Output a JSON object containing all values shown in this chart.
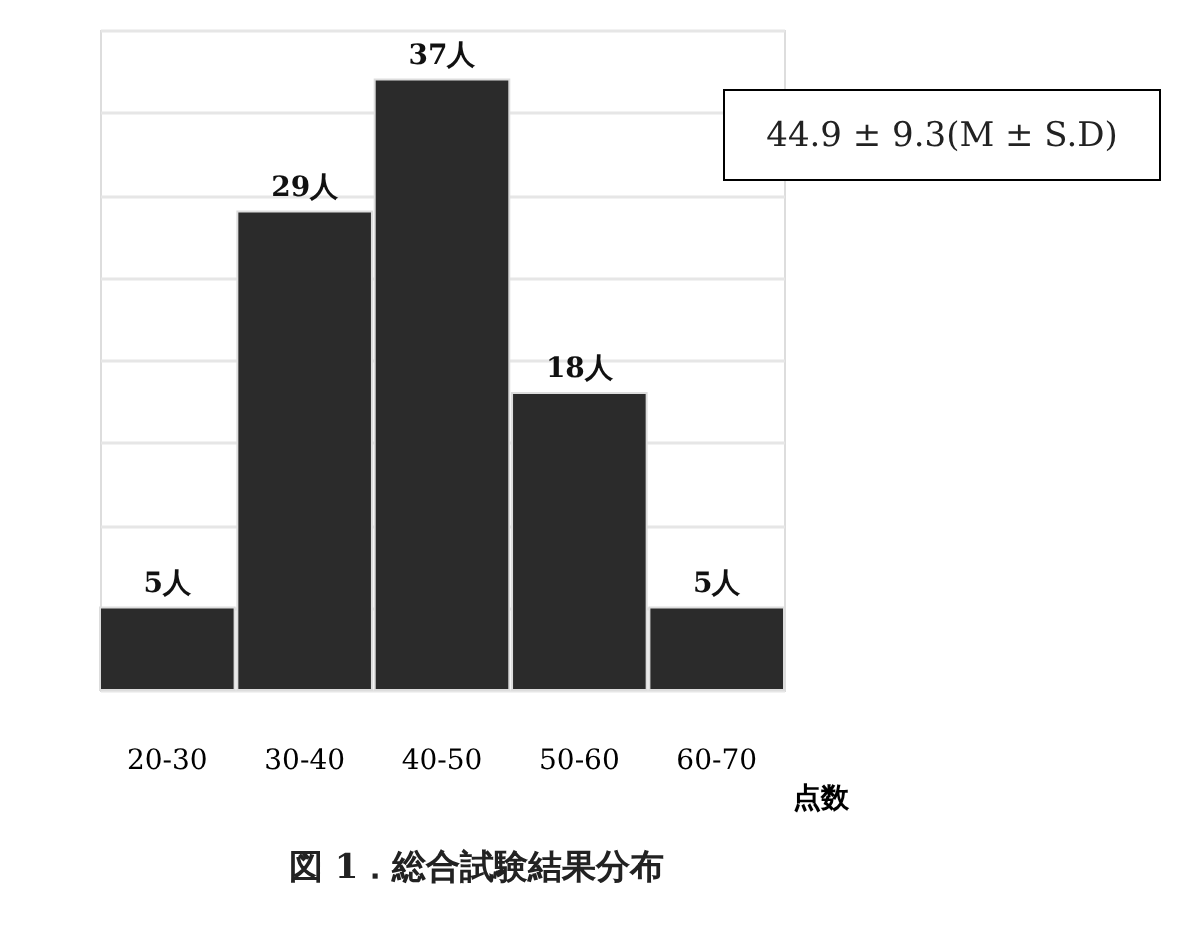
{
  "chart_data": {
    "type": "bar",
    "title": "図 1．総合試験結果分布",
    "xlabel": "点数",
    "categories": [
      "20-30",
      "30-40",
      "40-50",
      "50-60",
      "60-70"
    ],
    "values": [
      5,
      29,
      37,
      18,
      5
    ],
    "value_labels": [
      "5人",
      "29人",
      "37人",
      "18人",
      "5人"
    ],
    "color": "#2b2b2b",
    "ylim": [
      0,
      40
    ],
    "yticks": [
      {
        "value": 0,
        "label": null
      },
      {
        "value": 5,
        "label": null
      },
      {
        "value": 10,
        "label": null
      },
      {
        "value": 15,
        "label": null
      },
      {
        "value": 20,
        "label": null
      },
      {
        "value": 25,
        "label": null
      },
      {
        "value": 30,
        "label": null
      },
      {
        "value": 35,
        "label": null
      },
      {
        "value": 40,
        "label": null
      }
    ],
    "grid": "y",
    "tick_labels": "x",
    "annotations": [
      "44.9 ± 9.3(M ± S.D)"
    ]
  }
}
